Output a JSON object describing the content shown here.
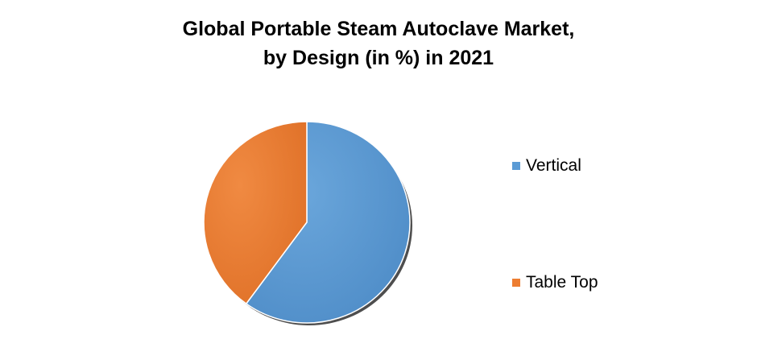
{
  "chart_data": {
    "type": "pie",
    "title": "Global Portable Steam Autoclave Market, by Design (in %) in 2021",
    "title_lines": [
      "Global Portable Steam Autoclave Market,",
      "by Design (in %) in 2021"
    ],
    "legend_position": "right",
    "slices": [
      {
        "label": "Vertical",
        "value": 60,
        "color": "#5b9bd5"
      },
      {
        "label": "Table Top",
        "value": 40,
        "color": "#ed7d31"
      }
    ]
  }
}
